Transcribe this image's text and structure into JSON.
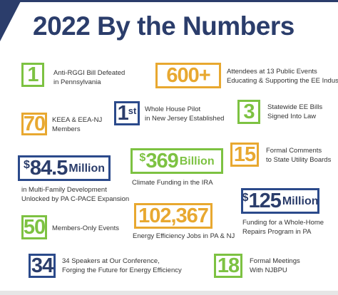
{
  "header": {
    "title": "2022 By the Numbers"
  },
  "items": [
    {
      "number": "1",
      "description": [
        "Anti-RGGI Bill Defeated",
        "in Pennsylvania"
      ]
    },
    {
      "number": "600+",
      "description": [
        "Attendees at 13 Public Events",
        "Educating & Supporting the EE Industry"
      ]
    },
    {
      "number": "1",
      "suffix": "st",
      "description": [
        "Whole House Pilot",
        "in New Jersey Established"
      ]
    },
    {
      "number": "3",
      "description": [
        "Statewide EE Bills",
        "Signed Into Law"
      ]
    },
    {
      "number": "70",
      "description": [
        "KEEA & EEA-NJ",
        "Members"
      ]
    },
    {
      "prefix": "$",
      "number": "84.5",
      "suffix": "Million",
      "description": [
        "in Multi-Family Development",
        "Unlocked by PA C-PACE Expansion"
      ]
    },
    {
      "prefix": "$",
      "number": "369",
      "suffix": "Billion",
      "description": [
        "Climate Funding in the IRA"
      ]
    },
    {
      "number": "15",
      "description": [
        "Formal Comments",
        "to State Utility Boards"
      ]
    },
    {
      "prefix": "$",
      "number": "125",
      "suffix": "Million",
      "description": [
        "Funding for a Whole-Home",
        "Repairs Program in PA"
      ]
    },
    {
      "number": "50",
      "description": [
        "Members-Only Events"
      ]
    },
    {
      "number": "102,367",
      "description": [
        "Energy Efficiency Jobs in PA & NJ"
      ]
    },
    {
      "number": "34",
      "description": [
        "34 Speakers at Our Conference,",
        "Forging the Future for Energy Efficiency"
      ]
    },
    {
      "number": "18",
      "description": [
        "Formal Meetings",
        "With NJBPU"
      ]
    }
  ]
}
